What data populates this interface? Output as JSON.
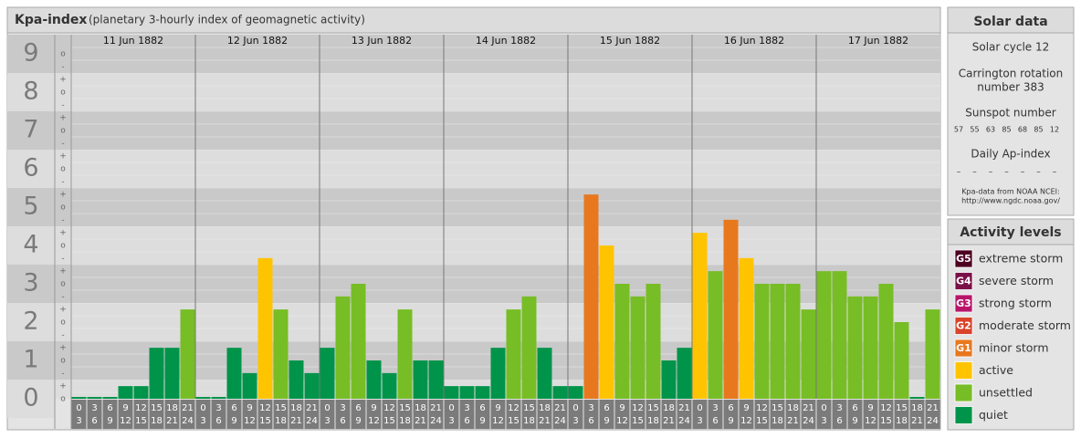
{
  "header": {
    "title": "Kpa-index",
    "subtitle": "(planetary 3-hourly index of geomagnetic activity)"
  },
  "chart_data": {
    "type": "bar",
    "ylim": [
      0,
      9.5
    ],
    "yticks": [
      0,
      1,
      2,
      3,
      4,
      5,
      6,
      7,
      8,
      9
    ],
    "minor_tick_labels": [
      "-",
      "o",
      "+"
    ],
    "hours": [
      [
        "0",
        "3"
      ],
      [
        "3",
        "6"
      ],
      [
        "6",
        "9"
      ],
      [
        "9",
        "12"
      ],
      [
        "12",
        "15"
      ],
      [
        "15",
        "18"
      ],
      [
        "18",
        "21"
      ],
      [
        "21",
        "24"
      ]
    ],
    "series": [
      {
        "name": "11 Jun 1882",
        "values": [
          0,
          0,
          0,
          0.33,
          0.33,
          1.33,
          1.33,
          2.33
        ]
      },
      {
        "name": "12 Jun 1882",
        "values": [
          0,
          0,
          1.33,
          0.67,
          3.67,
          2.33,
          1,
          0.67
        ]
      },
      {
        "name": "13 Jun 1882",
        "values": [
          1.33,
          2.67,
          3,
          1,
          0.67,
          2.33,
          1,
          1
        ]
      },
      {
        "name": "14 Jun 1882",
        "values": [
          0.33,
          0.33,
          0.33,
          1.33,
          2.33,
          2.67,
          1.33,
          0.33
        ]
      },
      {
        "name": "15 Jun 1882",
        "values": [
          0.33,
          5.33,
          4,
          3,
          2.67,
          3,
          1,
          1.33
        ]
      },
      {
        "name": "16 Jun 1882",
        "values": [
          4.33,
          3.33,
          4.67,
          3.67,
          3,
          3,
          3,
          2.33
        ]
      },
      {
        "name": "17 Jun 1882",
        "values": [
          3.33,
          3.33,
          2.67,
          2.67,
          3,
          2,
          0,
          2.33
        ]
      }
    ]
  },
  "solar_data": {
    "title": "Solar data",
    "cycle": "Solar cycle 12",
    "rotation": [
      "Carrington rotation",
      "number 383"
    ],
    "sunspot_title": "Sunspot number",
    "sunspot_numbers": [
      57,
      55,
      63,
      85,
      68,
      85,
      12
    ],
    "ap_title": "Daily Ap-index",
    "ap_values": [
      "–",
      "–",
      "–",
      "–",
      "–",
      "–",
      "–"
    ],
    "source": [
      "Kpa-data from NOAA NCEI:",
      "http://www.ngdc.noaa.gov/"
    ]
  },
  "activity_levels": {
    "title": "Activity levels",
    "levels": [
      {
        "badge": "G5",
        "name": "extreme storm",
        "color": "#4d0020"
      },
      {
        "badge": "G4",
        "name": "severe storm",
        "color": "#7a1048"
      },
      {
        "badge": "G3",
        "name": "strong storm",
        "color": "#b8156a"
      },
      {
        "badge": "G2",
        "name": "moderate storm",
        "color": "#d9432a"
      },
      {
        "badge": "G1",
        "name": "minor storm",
        "color": "#e8781e"
      },
      {
        "name": "active",
        "color": "#ffc400"
      },
      {
        "name": "unsettled",
        "color": "#77bd25"
      },
      {
        "name": "quiet",
        "color": "#00944a"
      }
    ]
  }
}
